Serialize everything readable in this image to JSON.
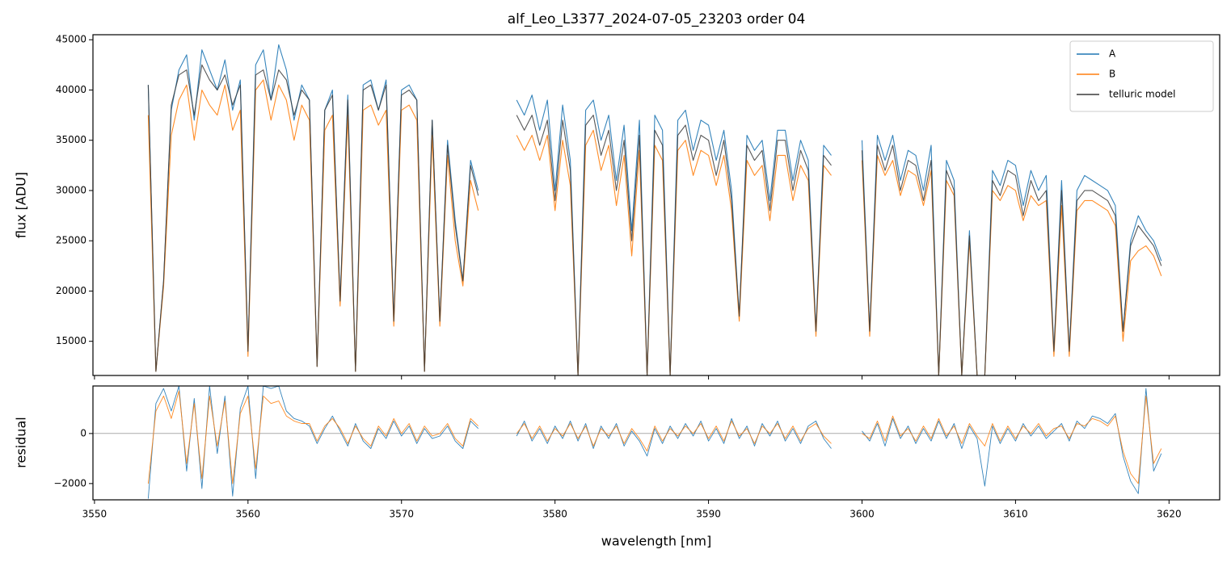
{
  "chart_data": [
    {
      "type": "line",
      "title": "alf_Leo_L3377_2024-07-05_23203  order 04",
      "ylabel": "flux [ADU]",
      "x": [
        3553.5,
        3554,
        3554.5,
        3555,
        3555.5,
        3556,
        3556.5,
        3557,
        3557.5,
        3558,
        3558.5,
        3559,
        3559.5,
        3560,
        3560.5,
        3561,
        3561.5,
        3562,
        3562.5,
        3563,
        3563.5,
        3564,
        3564.5,
        3565,
        3565.5,
        3566,
        3566.5,
        3567,
        3567.5,
        3568,
        3568.5,
        3569,
        3569.5,
        3570,
        3570.5,
        3571,
        3571.5,
        3572,
        3572.5,
        3573,
        3573.5,
        3574,
        3574.5,
        3575,
        3576,
        3577.5,
        3578,
        3578.5,
        3579,
        3579.5,
        3580,
        3580.5,
        3581,
        3581.5,
        3582,
        3582.5,
        3583,
        3583.5,
        3584,
        3584.5,
        3585,
        3585.5,
        3586,
        3586.5,
        3587,
        3587.5,
        3588,
        3588.5,
        3589,
        3589.5,
        3590,
        3590.5,
        3591,
        3591.5,
        3592,
        3592.5,
        3593,
        3593.5,
        3594,
        3594.5,
        3595,
        3595.5,
        3596,
        3596.5,
        3597,
        3597.5,
        3598,
        3599,
        3600,
        3600.5,
        3601,
        3601.5,
        3602,
        3602.5,
        3603,
        3603.5,
        3604,
        3604.5,
        3605,
        3605.5,
        3606,
        3606.5,
        3607,
        3607.5,
        3608,
        3608.5,
        3609,
        3609.5,
        3610,
        3610.5,
        3611,
        3611.5,
        3612,
        3612.5,
        3613,
        3613.5,
        3614,
        3614.5,
        3615,
        3615.5,
        3616,
        3616.5,
        3617,
        3617.5,
        3618,
        3618.5,
        3619,
        3619.5
      ],
      "series": [
        {
          "name": "A",
          "color": "#1f77b4",
          "values": [
            40500,
            12000,
            21000,
            38000,
            42000,
            43500,
            37000,
            44000,
            42000,
            40000,
            43000,
            38000,
            41000,
            14000,
            42500,
            44000,
            39000,
            44500,
            42000,
            37000,
            40500,
            39000,
            12500,
            38000,
            40000,
            19000,
            39500,
            12000,
            40500,
            41000,
            38000,
            41000,
            17000,
            40000,
            40500,
            39000,
            12000,
            37000,
            17000,
            35000,
            27000,
            21000,
            33000,
            30000,
            null,
            39000,
            37500,
            39500,
            36000,
            39000,
            30000,
            38500,
            33000,
            11600,
            38000,
            39000,
            35000,
            37500,
            31000,
            36500,
            26000,
            37000,
            11600,
            37500,
            36000,
            11600,
            37000,
            38000,
            34000,
            37000,
            36500,
            33000,
            36000,
            30000,
            17500,
            35500,
            34000,
            35000,
            29000,
            36000,
            36000,
            31000,
            35000,
            33000,
            16000,
            34500,
            33500,
            null,
            35000,
            16000,
            35500,
            33000,
            35500,
            31000,
            34000,
            33500,
            30000,
            34500,
            11600,
            33000,
            31000,
            11600,
            26000,
            11600,
            11600,
            32000,
            30500,
            33000,
            32500,
            28500,
            32000,
            30000,
            31500,
            14000,
            31000,
            14000,
            30000,
            31500,
            31000,
            30500,
            30000,
            28500,
            16000,
            25000,
            27500,
            26000,
            25000,
            23000
          ]
        },
        {
          "name": "B",
          "color": "#ff7f0e",
          "values": [
            37500,
            12000,
            20500,
            35500,
            39000,
            40500,
            35000,
            40000,
            38500,
            37500,
            40500,
            36000,
            38000,
            13500,
            40000,
            41000,
            37000,
            40500,
            39000,
            35000,
            38500,
            37000,
            12500,
            36000,
            37500,
            18500,
            37500,
            12000,
            38000,
            38500,
            36500,
            38000,
            16500,
            38000,
            38500,
            37000,
            12000,
            35500,
            16500,
            33500,
            25000,
            20500,
            31000,
            28000,
            null,
            35500,
            34000,
            35500,
            33000,
            35500,
            28000,
            35000,
            30500,
            11600,
            34500,
            36000,
            32000,
            34500,
            28500,
            33500,
            23500,
            34000,
            11600,
            34500,
            33000,
            11600,
            34000,
            35000,
            31500,
            34000,
            33500,
            30500,
            33500,
            28000,
            17000,
            33000,
            31500,
            32500,
            27000,
            33500,
            33500,
            29000,
            32500,
            31000,
            15500,
            32500,
            31500,
            null,
            33000,
            15500,
            33500,
            31500,
            33000,
            29500,
            32000,
            31500,
            28500,
            32000,
            11600,
            31000,
            29500,
            11600,
            25000,
            11600,
            11600,
            30000,
            29000,
            30500,
            30000,
            27000,
            29500,
            28500,
            29000,
            13500,
            28500,
            13500,
            28000,
            29000,
            29000,
            28500,
            28000,
            26500,
            15000,
            23000,
            24000,
            24500,
            23500,
            21500
          ]
        },
        {
          "name": "telluric model",
          "color": "#3a3a3a",
          "values": [
            40500,
            12000,
            21000,
            38500,
            41500,
            42000,
            37500,
            42500,
            41000,
            40000,
            41500,
            38500,
            40500,
            14000,
            41500,
            42000,
            39000,
            42000,
            41000,
            37500,
            40000,
            39000,
            12500,
            38000,
            39500,
            19000,
            39000,
            12000,
            40000,
            40500,
            38000,
            40500,
            17000,
            39500,
            40000,
            39000,
            12000,
            37000,
            17000,
            34500,
            26500,
            21000,
            32500,
            29500,
            null,
            37500,
            36000,
            37500,
            34500,
            37000,
            29000,
            37000,
            32000,
            11600,
            36500,
            37500,
            33500,
            36000,
            30000,
            35000,
            25000,
            35500,
            11600,
            36000,
            34500,
            11600,
            35500,
            36500,
            33000,
            35500,
            35000,
            31500,
            35000,
            29000,
            17500,
            34500,
            33000,
            34000,
            28000,
            35000,
            35000,
            30000,
            34000,
            32000,
            16000,
            33500,
            32500,
            null,
            34000,
            16000,
            34500,
            32000,
            34500,
            30000,
            33000,
            32500,
            29000,
            33000,
            11600,
            32000,
            30000,
            11600,
            25500,
            11600,
            11600,
            31000,
            29500,
            32000,
            31500,
            27500,
            31000,
            29000,
            30000,
            14000,
            30000,
            14000,
            29000,
            30000,
            30000,
            29500,
            29000,
            27500,
            16000,
            24500,
            26500,
            25500,
            24500,
            22500
          ]
        }
      ],
      "xlim": [
        3549.9,
        3623.3
      ],
      "ylim": [
        11600,
        45500
      ],
      "yticks": [
        15000,
        20000,
        25000,
        30000,
        35000,
        40000,
        45000
      ],
      "legend": "upper right"
    },
    {
      "type": "line",
      "ylabel": "residual",
      "xlabel": "wavelength [nm]",
      "x": [
        3553.5,
        3554,
        3554.5,
        3555,
        3555.5,
        3556,
        3556.5,
        3557,
        3557.5,
        3558,
        3558.5,
        3559,
        3559.5,
        3560,
        3560.5,
        3561,
        3561.5,
        3562,
        3562.5,
        3563,
        3563.5,
        3564,
        3564.5,
        3565,
        3565.5,
        3566,
        3566.5,
        3567,
        3567.5,
        3568,
        3568.5,
        3569,
        3569.5,
        3570,
        3570.5,
        3571,
        3571.5,
        3572,
        3572.5,
        3573,
        3573.5,
        3574,
        3574.5,
        3575,
        3576,
        3577.5,
        3578,
        3578.5,
        3579,
        3579.5,
        3580,
        3580.5,
        3581,
        3581.5,
        3582,
        3582.5,
        3583,
        3583.5,
        3584,
        3584.5,
        3585,
        3585.5,
        3586,
        3586.5,
        3587,
        3587.5,
        3588,
        3588.5,
        3589,
        3589.5,
        3590,
        3590.5,
        3591,
        3591.5,
        3592,
        3592.5,
        3593,
        3593.5,
        3594,
        3594.5,
        3595,
        3595.5,
        3596,
        3596.5,
        3597,
        3597.5,
        3598,
        3599,
        3600,
        3600.5,
        3601,
        3601.5,
        3602,
        3602.5,
        3603,
        3603.5,
        3604,
        3604.5,
        3605,
        3605.5,
        3606,
        3606.5,
        3607,
        3607.5,
        3608,
        3608.5,
        3609,
        3609.5,
        3610,
        3610.5,
        3611,
        3611.5,
        3612,
        3612.5,
        3613,
        3613.5,
        3614,
        3614.5,
        3615,
        3615.5,
        3616,
        3616.5,
        3617,
        3617.5,
        3618,
        3618.5,
        3619,
        3619.5
      ],
      "series": [
        {
          "color": "#1f77b4",
          "values": [
            -2600,
            1200,
            1800,
            900,
            1900,
            -1500,
            1400,
            -2200,
            1900,
            -800,
            1500,
            -2500,
            1000,
            1900,
            -1800,
            1900,
            1800,
            1900,
            900,
            600,
            500,
            300,
            -400,
            200,
            700,
            100,
            -500,
            400,
            -300,
            -600,
            200,
            -200,
            500,
            -100,
            300,
            -400,
            200,
            -200,
            -100,
            300,
            -300,
            -600,
            500,
            200,
            null,
            -100,
            500,
            -300,
            200,
            -400,
            300,
            -200,
            500,
            -300,
            400,
            -600,
            300,
            -200,
            400,
            -500,
            100,
            -300,
            -900,
            200,
            -400,
            300,
            -200,
            400,
            -100,
            500,
            -300,
            200,
            -400,
            600,
            -200,
            300,
            -500,
            400,
            -100,
            500,
            -300,
            200,
            -400,
            300,
            500,
            -200,
            -600,
            null,
            100,
            -300,
            400,
            -500,
            600,
            -200,
            300,
            -400,
            200,
            -300,
            500,
            -200,
            400,
            -600,
            300,
            -200,
            -2100,
            300,
            -400,
            200,
            -300,
            400,
            -100,
            300,
            -200,
            100,
            400,
            -300,
            500,
            200,
            700,
            600,
            400,
            800,
            -900,
            -1900,
            -2400,
            1800,
            -1500,
            -800
          ]
        },
        {
          "color": "#ff7f0e",
          "values": [
            -2000,
            900,
            1500,
            600,
            1700,
            -1200,
            1200,
            -1800,
            1500,
            -500,
            1300,
            -2000,
            800,
            1500,
            -1400,
            1500,
            1200,
            1300,
            700,
            500,
            400,
            400,
            -300,
            300,
            600,
            200,
            -400,
            300,
            -200,
            -500,
            300,
            -100,
            600,
            0,
            400,
            -300,
            300,
            -100,
            0,
            400,
            -200,
            -500,
            600,
            300,
            null,
            0,
            400,
            -200,
            300,
            -300,
            200,
            -100,
            400,
            -200,
            300,
            -500,
            200,
            -100,
            300,
            -400,
            200,
            -200,
            -700,
            300,
            -300,
            200,
            -100,
            300,
            0,
            400,
            -200,
            300,
            -300,
            500,
            -100,
            200,
            -400,
            300,
            0,
            400,
            -200,
            300,
            -300,
            200,
            400,
            -100,
            -400,
            null,
            0,
            -200,
            500,
            -300,
            700,
            -100,
            200,
            -300,
            300,
            -200,
            600,
            -100,
            300,
            -400,
            400,
            -100,
            -500,
            400,
            -300,
            300,
            -200,
            300,
            0,
            400,
            -100,
            200,
            300,
            -200,
            400,
            300,
            600,
            500,
            300,
            700,
            -700,
            -1600,
            -2000,
            1500,
            -1200,
            -600
          ]
        }
      ],
      "xlim": [
        3549.9,
        3623.3
      ],
      "ylim": [
        -2650,
        1900
      ],
      "xticks": [
        3550,
        3560,
        3570,
        3580,
        3590,
        3600,
        3610,
        3620
      ],
      "yticks": [
        {
          "value": -2000,
          "label": "−2000"
        },
        0
      ],
      "hline": 0
    }
  ]
}
